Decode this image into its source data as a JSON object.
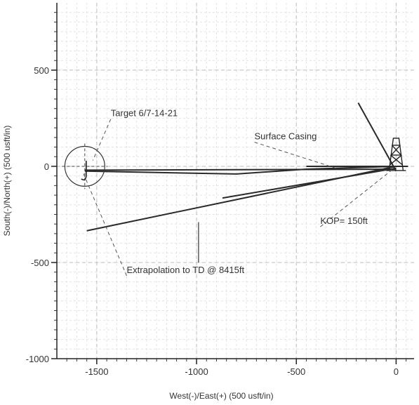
{
  "chart_data": {
    "type": "line",
    "title": "",
    "xlabel": "West(-)/East(+) (500 usft/in)",
    "ylabel": "South(-)/North(+) (500 usft/in)",
    "xlim": [
      -1700,
      90
    ],
    "ylim": [
      -1000,
      850
    ],
    "x_ticks": [
      -1500,
      -1000,
      -500,
      0
    ],
    "y_ticks": [
      -1000,
      -500,
      0,
      500
    ],
    "x_tick_labels": [
      "-1500",
      "-1000",
      "-500",
      "0"
    ],
    "y_tick_labels": [
      "-1000",
      "-500",
      "0",
      "500"
    ],
    "grid": true,
    "series": [
      {
        "x": [
          0,
          -450,
          -800,
          -1560
        ],
        "y": [
          0,
          -15,
          -40,
          -25
        ],
        "color": "#2a2a2a"
      },
      {
        "x": [
          0,
          -1560
        ],
        "y": [
          -15,
          -20
        ],
        "color": "#2a2a2a"
      },
      {
        "x": [
          0,
          -1550
        ],
        "y": [
          0,
          -335
        ],
        "color": "#2a2a2a"
      },
      {
        "x": [
          0,
          -870
        ],
        "y": [
          -10,
          -165
        ],
        "color": "#2a2a2a"
      },
      {
        "x": [
          0,
          -190
        ],
        "y": [
          -25,
          330
        ],
        "color": "#2a2a2a"
      },
      {
        "x": [
          60,
          -450
        ],
        "y": [
          0,
          0
        ],
        "color": "#2a2a2a"
      }
    ],
    "target": {
      "x": -1560,
      "y": 0,
      "radius": 100
    },
    "annotations": [
      {
        "text": "Target 6/7-14-21",
        "x": -1430,
        "y": 260,
        "point_x": -1520,
        "point_y": 30
      },
      {
        "text": "Surface Casing",
        "x": -710,
        "y": 140,
        "point_x": -300,
        "point_y": -10
      },
      {
        "text": "KOP= 150ft",
        "x": -380,
        "y": -300,
        "point_x": -10,
        "point_y": -10
      },
      {
        "text": "Extrapolation to TD @ 8415ft",
        "x": -1350,
        "y": -555,
        "point_x": -1570,
        "point_y": -30
      }
    ]
  }
}
